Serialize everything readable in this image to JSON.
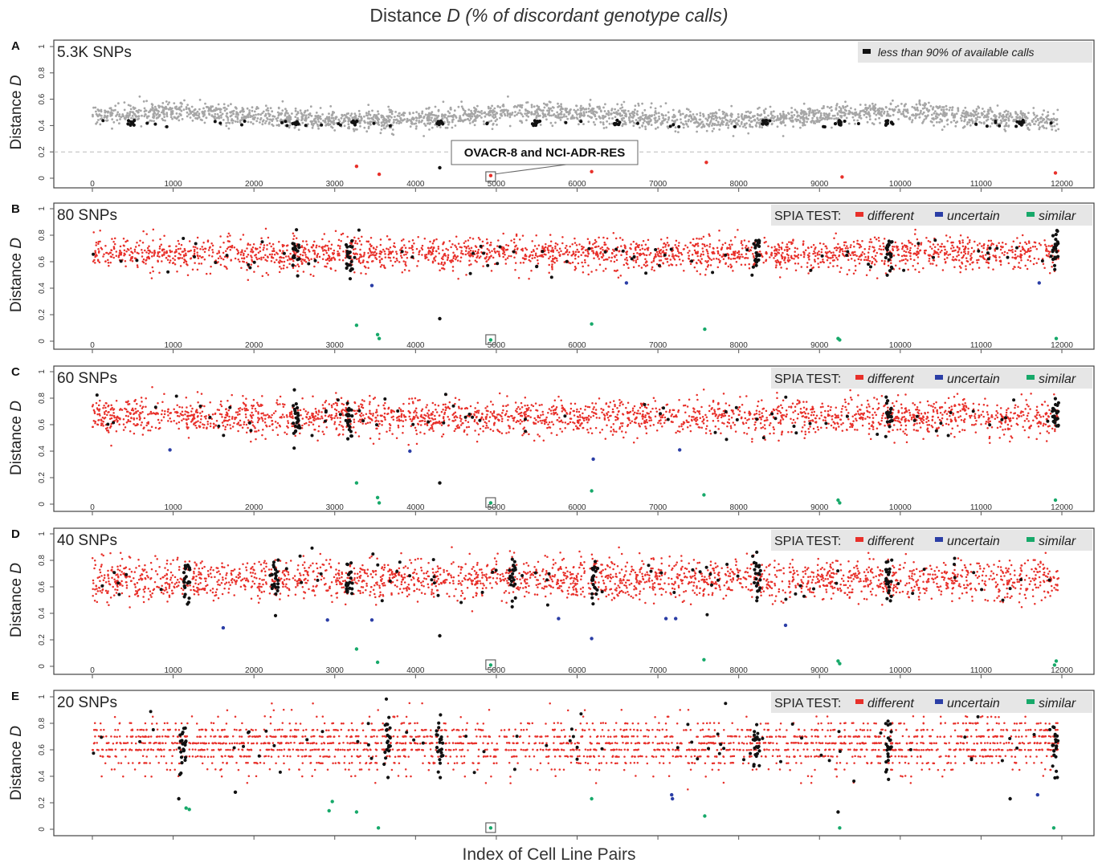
{
  "figure": {
    "title_prefix": "Distance ",
    "title_italic": "D (% of discordant genotype calls)",
    "xlabel": "Index of Cell Line Pairs",
    "ylabel_prefix": "Distance ",
    "ylabel_italic": "D"
  },
  "colors": {
    "different": "#e8302a",
    "uncertain": "#2b3ea6",
    "similar": "#17a96a",
    "low_calls": "#111111",
    "gray_points": "#a6a6a6",
    "frame": "#444444",
    "legend_bg": "#e6e6e6",
    "threshold_line": "#bbbbbb"
  },
  "chart_data": [
    {
      "type": "scatter",
      "panel": "A",
      "label": "5.3K SNPs",
      "xlim": [
        0,
        12000
      ],
      "ylim": [
        0,
        1
      ],
      "xticks": [
        0,
        1000,
        2000,
        3000,
        4000,
        5000,
        6000,
        7000,
        8000,
        9000,
        10000,
        11000,
        12000
      ],
      "xtick_labels": [
        "0",
        "1000",
        "2000",
        "3000",
        "4000",
        "5000",
        "6000",
        "7000",
        "8000",
        "9000",
        "10000",
        "11000",
        "12000"
      ],
      "yticks": [
        0,
        0.2,
        0.4,
        0.6,
        0.8,
        1
      ],
      "ytick_labels": [
        "0",
        "0.2",
        "0.4",
        "0.6",
        "0.8",
        "1"
      ],
      "threshold": 0.2,
      "legend": {
        "items": [
          {
            "label": "less than 90% of available calls",
            "color": "#111111"
          }
        ]
      },
      "annotation": {
        "text": "OVACR-8 and NCI-ADR-RES",
        "x": 4930,
        "y": 0.02
      },
      "bulk_band": {
        "x_range": [
          0,
          11960
        ],
        "center": 0.47,
        "spread": 0.05,
        "color_key": "gray_points"
      },
      "cluster_x": [
        480,
        2520,
        3250,
        4300,
        5500,
        6500,
        8330,
        9230,
        9860,
        11500
      ],
      "low_points": [
        {
          "x": 3270,
          "y": 0.09,
          "class": "different"
        },
        {
          "x": 3550,
          "y": 0.03,
          "class": "different"
        },
        {
          "x": 4300,
          "y": 0.08,
          "class": "low_calls"
        },
        {
          "x": 4930,
          "y": 0.02,
          "class": "different"
        },
        {
          "x": 6180,
          "y": 0.05,
          "class": "different"
        },
        {
          "x": 7600,
          "y": 0.12,
          "class": "different"
        },
        {
          "x": 9280,
          "y": 0.01,
          "class": "different"
        },
        {
          "x": 11920,
          "y": 0.04,
          "class": "different"
        }
      ]
    },
    {
      "type": "scatter",
      "panel": "B",
      "label": "80 SNPs",
      "xlim": [
        0,
        12000
      ],
      "ylim": [
        0,
        1
      ],
      "xticks": [
        0,
        1000,
        2000,
        3000,
        4000,
        5000,
        6000,
        7000,
        8000,
        9000,
        10000,
        11000,
        12000
      ],
      "xtick_labels": [
        "0",
        "1000",
        "2000",
        "3000",
        "4000",
        "5000",
        "6000",
        "7000",
        "8000",
        "9000",
        "10000",
        "11000",
        "12000"
      ],
      "yticks": [
        0,
        0.2,
        0.4,
        0.6,
        0.8,
        1
      ],
      "ytick_labels": [
        "0",
        "0.2",
        "0.4",
        "0.6",
        "0.8",
        "1"
      ],
      "legend": {
        "prefix": "SPIA TEST:",
        "items": [
          {
            "label": "different",
            "color": "#e8302a"
          },
          {
            "label": "uncertain",
            "color": "#2b3ea6"
          },
          {
            "label": "similar",
            "color": "#17a96a"
          }
        ]
      },
      "bulk_band": {
        "x_range": [
          0,
          11960
        ],
        "center": 0.66,
        "spread": 0.08,
        "color_key": "different"
      },
      "cluster_x": [
        2520,
        3180,
        8220,
        9860,
        11920
      ],
      "low_points": [
        {
          "x": 3460,
          "y": 0.42,
          "class": "uncertain"
        },
        {
          "x": 6610,
          "y": 0.44,
          "class": "uncertain"
        },
        {
          "x": 11720,
          "y": 0.44,
          "class": "uncertain"
        },
        {
          "x": 4300,
          "y": 0.17,
          "class": "low_calls"
        },
        {
          "x": 3270,
          "y": 0.12,
          "class": "similar"
        },
        {
          "x": 3530,
          "y": 0.05,
          "class": "similar"
        },
        {
          "x": 3550,
          "y": 0.02,
          "class": "similar"
        },
        {
          "x": 4930,
          "y": 0.01,
          "class": "similar"
        },
        {
          "x": 6180,
          "y": 0.13,
          "class": "similar"
        },
        {
          "x": 7580,
          "y": 0.09,
          "class": "similar"
        },
        {
          "x": 9230,
          "y": 0.02,
          "class": "similar"
        },
        {
          "x": 9250,
          "y": 0.01,
          "class": "similar"
        },
        {
          "x": 11930,
          "y": 0.02,
          "class": "similar"
        }
      ]
    },
    {
      "type": "scatter",
      "panel": "C",
      "label": "60 SNPs",
      "xlim": [
        0,
        12000
      ],
      "ylim": [
        0,
        1
      ],
      "xticks": [
        0,
        1000,
        2000,
        3000,
        4000,
        5000,
        6000,
        7000,
        8000,
        9000,
        10000,
        11000,
        12000
      ],
      "xtick_labels": [
        "0",
        "1000",
        "2000",
        "3000",
        "4000",
        "5000",
        "6000",
        "7000",
        "8000",
        "9000",
        "10000",
        "11000",
        "12000"
      ],
      "yticks": [
        0,
        0.2,
        0.4,
        0.6,
        0.8,
        1
      ],
      "ytick_labels": [
        "0",
        "0.2",
        "0.4",
        "0.6",
        "0.8",
        "1"
      ],
      "legend": {
        "prefix": "SPIA TEST:",
        "items": [
          {
            "label": "different",
            "color": "#e8302a"
          },
          {
            "label": "uncertain",
            "color": "#2b3ea6"
          },
          {
            "label": "similar",
            "color": "#17a96a"
          }
        ]
      },
      "bulk_band": {
        "x_range": [
          0,
          11960
        ],
        "center": 0.66,
        "spread": 0.09,
        "color_key": "different"
      },
      "cluster_x": [
        2520,
        3180,
        9860,
        11920
      ],
      "low_points": [
        {
          "x": 960,
          "y": 0.41,
          "class": "uncertain"
        },
        {
          "x": 3930,
          "y": 0.4,
          "class": "uncertain"
        },
        {
          "x": 6200,
          "y": 0.34,
          "class": "uncertain"
        },
        {
          "x": 7270,
          "y": 0.41,
          "class": "uncertain"
        },
        {
          "x": 4300,
          "y": 0.16,
          "class": "low_calls"
        },
        {
          "x": 3270,
          "y": 0.16,
          "class": "similar"
        },
        {
          "x": 3530,
          "y": 0.05,
          "class": "similar"
        },
        {
          "x": 3550,
          "y": 0.01,
          "class": "similar"
        },
        {
          "x": 4930,
          "y": 0.01,
          "class": "similar"
        },
        {
          "x": 6180,
          "y": 0.1,
          "class": "similar"
        },
        {
          "x": 7570,
          "y": 0.07,
          "class": "similar"
        },
        {
          "x": 9230,
          "y": 0.03,
          "class": "similar"
        },
        {
          "x": 9250,
          "y": 0.01,
          "class": "similar"
        },
        {
          "x": 11920,
          "y": 0.03,
          "class": "similar"
        }
      ]
    },
    {
      "type": "scatter",
      "panel": "D",
      "label": "40 SNPs",
      "xlim": [
        0,
        12000
      ],
      "ylim": [
        0,
        1
      ],
      "xticks": [
        0,
        1000,
        2000,
        3000,
        4000,
        5000,
        6000,
        7000,
        8000,
        9000,
        10000,
        11000,
        12000
      ],
      "xtick_labels": [
        "0",
        "1000",
        "2000",
        "3000",
        "4000",
        "5000",
        "6000",
        "7000",
        "8000",
        "9000",
        "10000",
        "11000",
        "12000"
      ],
      "yticks": [
        0,
        0.2,
        0.4,
        0.6,
        0.8,
        1
      ],
      "ytick_labels": [
        "0",
        "0.2",
        "0.4",
        "0.6",
        "0.8",
        "1"
      ],
      "legend": {
        "prefix": "SPIA TEST:",
        "items": [
          {
            "label": "different",
            "color": "#e8302a"
          },
          {
            "label": "uncertain",
            "color": "#2b3ea6"
          },
          {
            "label": "similar",
            "color": "#17a96a"
          }
        ]
      },
      "bulk_band": {
        "x_range": [
          0,
          11960
        ],
        "center": 0.66,
        "spread": 0.1,
        "color_key": "different"
      },
      "cluster_x": [
        1170,
        2260,
        3180,
        5200,
        6220,
        8230,
        9860
      ],
      "low_points": [
        {
          "x": 1620,
          "y": 0.29,
          "class": "uncertain"
        },
        {
          "x": 2910,
          "y": 0.35,
          "class": "uncertain"
        },
        {
          "x": 3460,
          "y": 0.35,
          "class": "uncertain"
        },
        {
          "x": 5770,
          "y": 0.36,
          "class": "uncertain"
        },
        {
          "x": 7100,
          "y": 0.36,
          "class": "uncertain"
        },
        {
          "x": 7220,
          "y": 0.36,
          "class": "uncertain"
        },
        {
          "x": 8580,
          "y": 0.31,
          "class": "uncertain"
        },
        {
          "x": 6180,
          "y": 0.21,
          "class": "uncertain"
        },
        {
          "x": 4300,
          "y": 0.23,
          "class": "low_calls"
        },
        {
          "x": 3270,
          "y": 0.13,
          "class": "similar"
        },
        {
          "x": 3530,
          "y": 0.03,
          "class": "similar"
        },
        {
          "x": 4930,
          "y": 0.01,
          "class": "similar"
        },
        {
          "x": 7570,
          "y": 0.05,
          "class": "similar"
        },
        {
          "x": 9230,
          "y": 0.04,
          "class": "similar"
        },
        {
          "x": 9250,
          "y": 0.02,
          "class": "similar"
        },
        {
          "x": 11930,
          "y": 0.04,
          "class": "similar"
        },
        {
          "x": 11910,
          "y": 0.01,
          "class": "similar"
        }
      ]
    },
    {
      "type": "scatter",
      "panel": "E",
      "label": "20 SNPs",
      "xlim": [
        0,
        12000
      ],
      "ylim": [
        0,
        1
      ],
      "xticks": [
        0,
        1000,
        2000,
        3000,
        4000,
        5000,
        6000,
        7000,
        8000,
        9000,
        10000,
        11000,
        12000
      ],
      "xtick_labels": [],
      "yticks": [
        0,
        0.2,
        0.4,
        0.6,
        0.8,
        1
      ],
      "ytick_labels": [
        "0",
        "0.2",
        "0.4",
        "0.6",
        "0.8",
        "1"
      ],
      "legend": {
        "prefix": "SPIA TEST:",
        "items": [
          {
            "label": "different",
            "color": "#e8302a"
          },
          {
            "label": "uncertain",
            "color": "#2b3ea6"
          },
          {
            "label": "similar",
            "color": "#17a96a"
          }
        ]
      },
      "bulk_band": {
        "x_range": [
          0,
          11960
        ],
        "center": 0.64,
        "spread": 0.13,
        "color_key": "different"
      },
      "cluster_x": [
        1120,
        3650,
        4300,
        8220,
        9860,
        11920
      ],
      "low_points": [
        {
          "x": 1070,
          "y": 0.23,
          "class": "low_calls"
        },
        {
          "x": 1160,
          "y": 0.16,
          "class": "similar"
        },
        {
          "x": 1200,
          "y": 0.15,
          "class": "similar"
        },
        {
          "x": 1770,
          "y": 0.28,
          "class": "low_calls"
        },
        {
          "x": 2930,
          "y": 0.14,
          "class": "similar"
        },
        {
          "x": 2970,
          "y": 0.21,
          "class": "similar"
        },
        {
          "x": 3270,
          "y": 0.13,
          "class": "similar"
        },
        {
          "x": 3540,
          "y": 0.01,
          "class": "similar"
        },
        {
          "x": 4930,
          "y": 0.01,
          "class": "similar"
        },
        {
          "x": 6180,
          "y": 0.23,
          "class": "similar"
        },
        {
          "x": 7170,
          "y": 0.26,
          "class": "uncertain"
        },
        {
          "x": 7180,
          "y": 0.23,
          "class": "uncertain"
        },
        {
          "x": 7580,
          "y": 0.1,
          "class": "similar"
        },
        {
          "x": 9230,
          "y": 0.13,
          "class": "low_calls"
        },
        {
          "x": 9250,
          "y": 0.01,
          "class": "similar"
        },
        {
          "x": 11900,
          "y": 0.01,
          "class": "similar"
        },
        {
          "x": 11360,
          "y": 0.23,
          "class": "low_calls"
        },
        {
          "x": 11700,
          "y": 0.26,
          "class": "uncertain"
        }
      ]
    }
  ]
}
